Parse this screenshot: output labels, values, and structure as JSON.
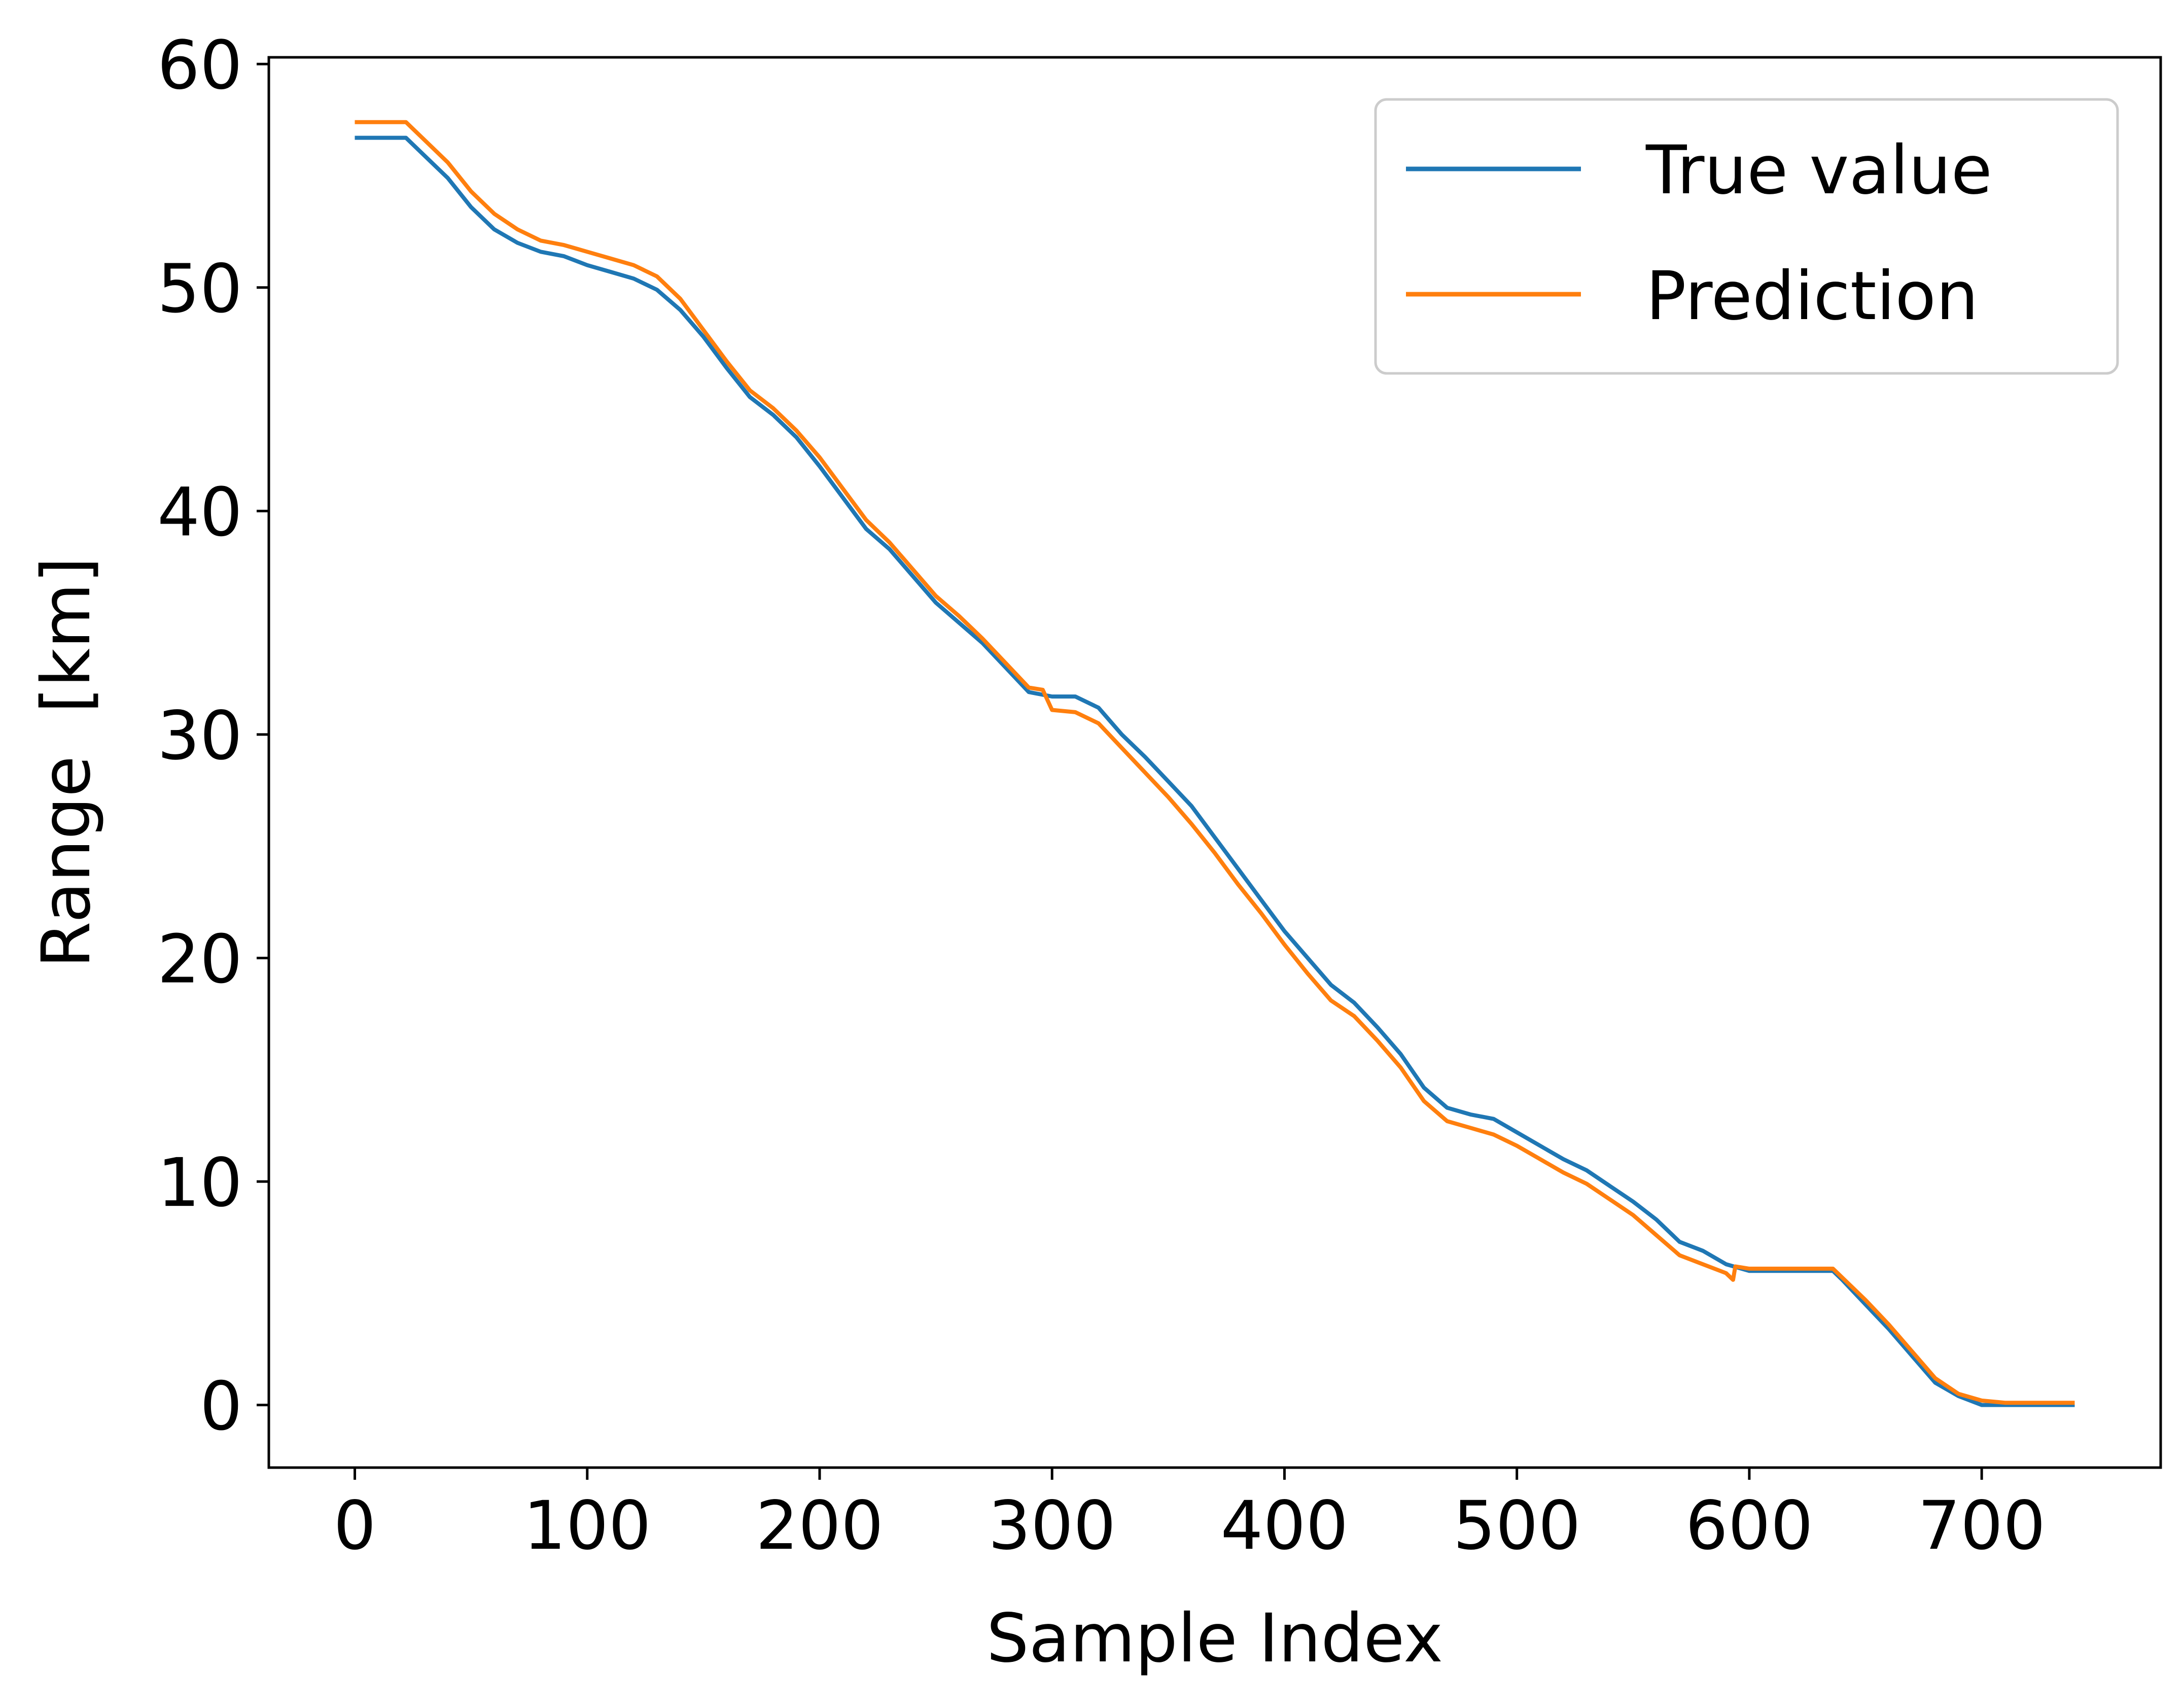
{
  "chart_data": {
    "type": "line",
    "title": "",
    "xlabel": "Sample Index",
    "ylabel": "Range  [km]",
    "xlim": [
      -37,
      777
    ],
    "ylim": [
      -2.8,
      60.3
    ],
    "xticks": [
      0,
      100,
      200,
      300,
      400,
      500,
      600,
      700
    ],
    "xtick_labels": [
      "0",
      "100",
      "200",
      "300",
      "400",
      "500",
      "600",
      "700"
    ],
    "yticks": [
      0,
      10,
      20,
      30,
      40,
      50,
      60
    ],
    "ytick_labels": [
      "0",
      "10",
      "20",
      "30",
      "40",
      "50",
      "60"
    ],
    "grid": false,
    "legend_position": "top-right",
    "series": [
      {
        "name": "True value",
        "color": "#1f77b4",
        "x": [
          0,
          22,
          30,
          40,
          50,
          60,
          70,
          80,
          90,
          100,
          110,
          120,
          130,
          140,
          150,
          160,
          170,
          180,
          190,
          200,
          210,
          220,
          230,
          240,
          250,
          260,
          270,
          280,
          290,
          300,
          310,
          320,
          330,
          340,
          350,
          360,
          370,
          380,
          390,
          400,
          410,
          420,
          430,
          440,
          450,
          460,
          470,
          480,
          490,
          500,
          510,
          520,
          530,
          540,
          550,
          560,
          570,
          580,
          590,
          600,
          610,
          620,
          630,
          636,
          640,
          650,
          660,
          670,
          680,
          690,
          700,
          710,
          720,
          730,
          740
        ],
        "y": [
          56.7,
          56.7,
          55.9,
          54.9,
          53.6,
          52.6,
          52.0,
          51.6,
          51.4,
          51.0,
          50.7,
          50.4,
          49.9,
          49.0,
          47.8,
          46.4,
          45.1,
          44.3,
          43.3,
          42.0,
          40.6,
          39.2,
          38.3,
          37.1,
          35.9,
          35.0,
          34.1,
          33.0,
          31.9,
          31.7,
          31.7,
          31.2,
          30.0,
          29.0,
          27.9,
          26.8,
          25.4,
          24.0,
          22.6,
          21.2,
          20.0,
          18.8,
          18.0,
          16.9,
          15.7,
          14.2,
          13.3,
          13.0,
          12.8,
          12.2,
          11.6,
          11.0,
          10.5,
          9.8,
          9.1,
          8.3,
          7.3,
          6.9,
          6.3,
          6.0,
          6.0,
          6.0,
          6.0,
          6.0,
          5.6,
          4.5,
          3.4,
          2.2,
          1.0,
          0.4,
          0.0,
          0.0,
          0.0,
          0.0,
          0.0
        ]
      },
      {
        "name": "Prediction",
        "color": "#ff7f0e",
        "x": [
          0,
          22,
          30,
          40,
          50,
          60,
          70,
          80,
          90,
          100,
          110,
          120,
          130,
          140,
          150,
          160,
          170,
          180,
          190,
          200,
          210,
          220,
          230,
          240,
          250,
          260,
          270,
          280,
          290,
          296,
          300,
          310,
          320,
          330,
          340,
          350,
          360,
          370,
          380,
          390,
          400,
          410,
          420,
          430,
          440,
          450,
          460,
          470,
          480,
          490,
          500,
          510,
          520,
          530,
          540,
          550,
          560,
          570,
          580,
          590,
          593,
          594,
          600,
          610,
          620,
          630,
          636,
          640,
          650,
          660,
          670,
          680,
          690,
          700,
          710,
          720,
          730,
          740
        ],
        "y": [
          57.4,
          57.4,
          56.6,
          55.6,
          54.3,
          53.3,
          52.6,
          52.1,
          51.9,
          51.6,
          51.3,
          51.0,
          50.5,
          49.5,
          48.1,
          46.7,
          45.4,
          44.6,
          43.6,
          42.4,
          41.0,
          39.6,
          38.6,
          37.4,
          36.2,
          35.3,
          34.3,
          33.2,
          32.1,
          32.0,
          31.1,
          31.0,
          30.5,
          29.4,
          28.3,
          27.2,
          26.0,
          24.7,
          23.3,
          22.0,
          20.6,
          19.3,
          18.1,
          17.4,
          16.3,
          15.1,
          13.6,
          12.7,
          12.4,
          12.1,
          11.6,
          11.0,
          10.4,
          9.9,
          9.2,
          8.5,
          7.6,
          6.7,
          6.3,
          5.9,
          5.6,
          6.2,
          6.1,
          6.1,
          6.1,
          6.1,
          6.1,
          5.7,
          4.7,
          3.6,
          2.4,
          1.2,
          0.5,
          0.2,
          0.1,
          0.1,
          0.1,
          0.1
        ]
      }
    ]
  }
}
